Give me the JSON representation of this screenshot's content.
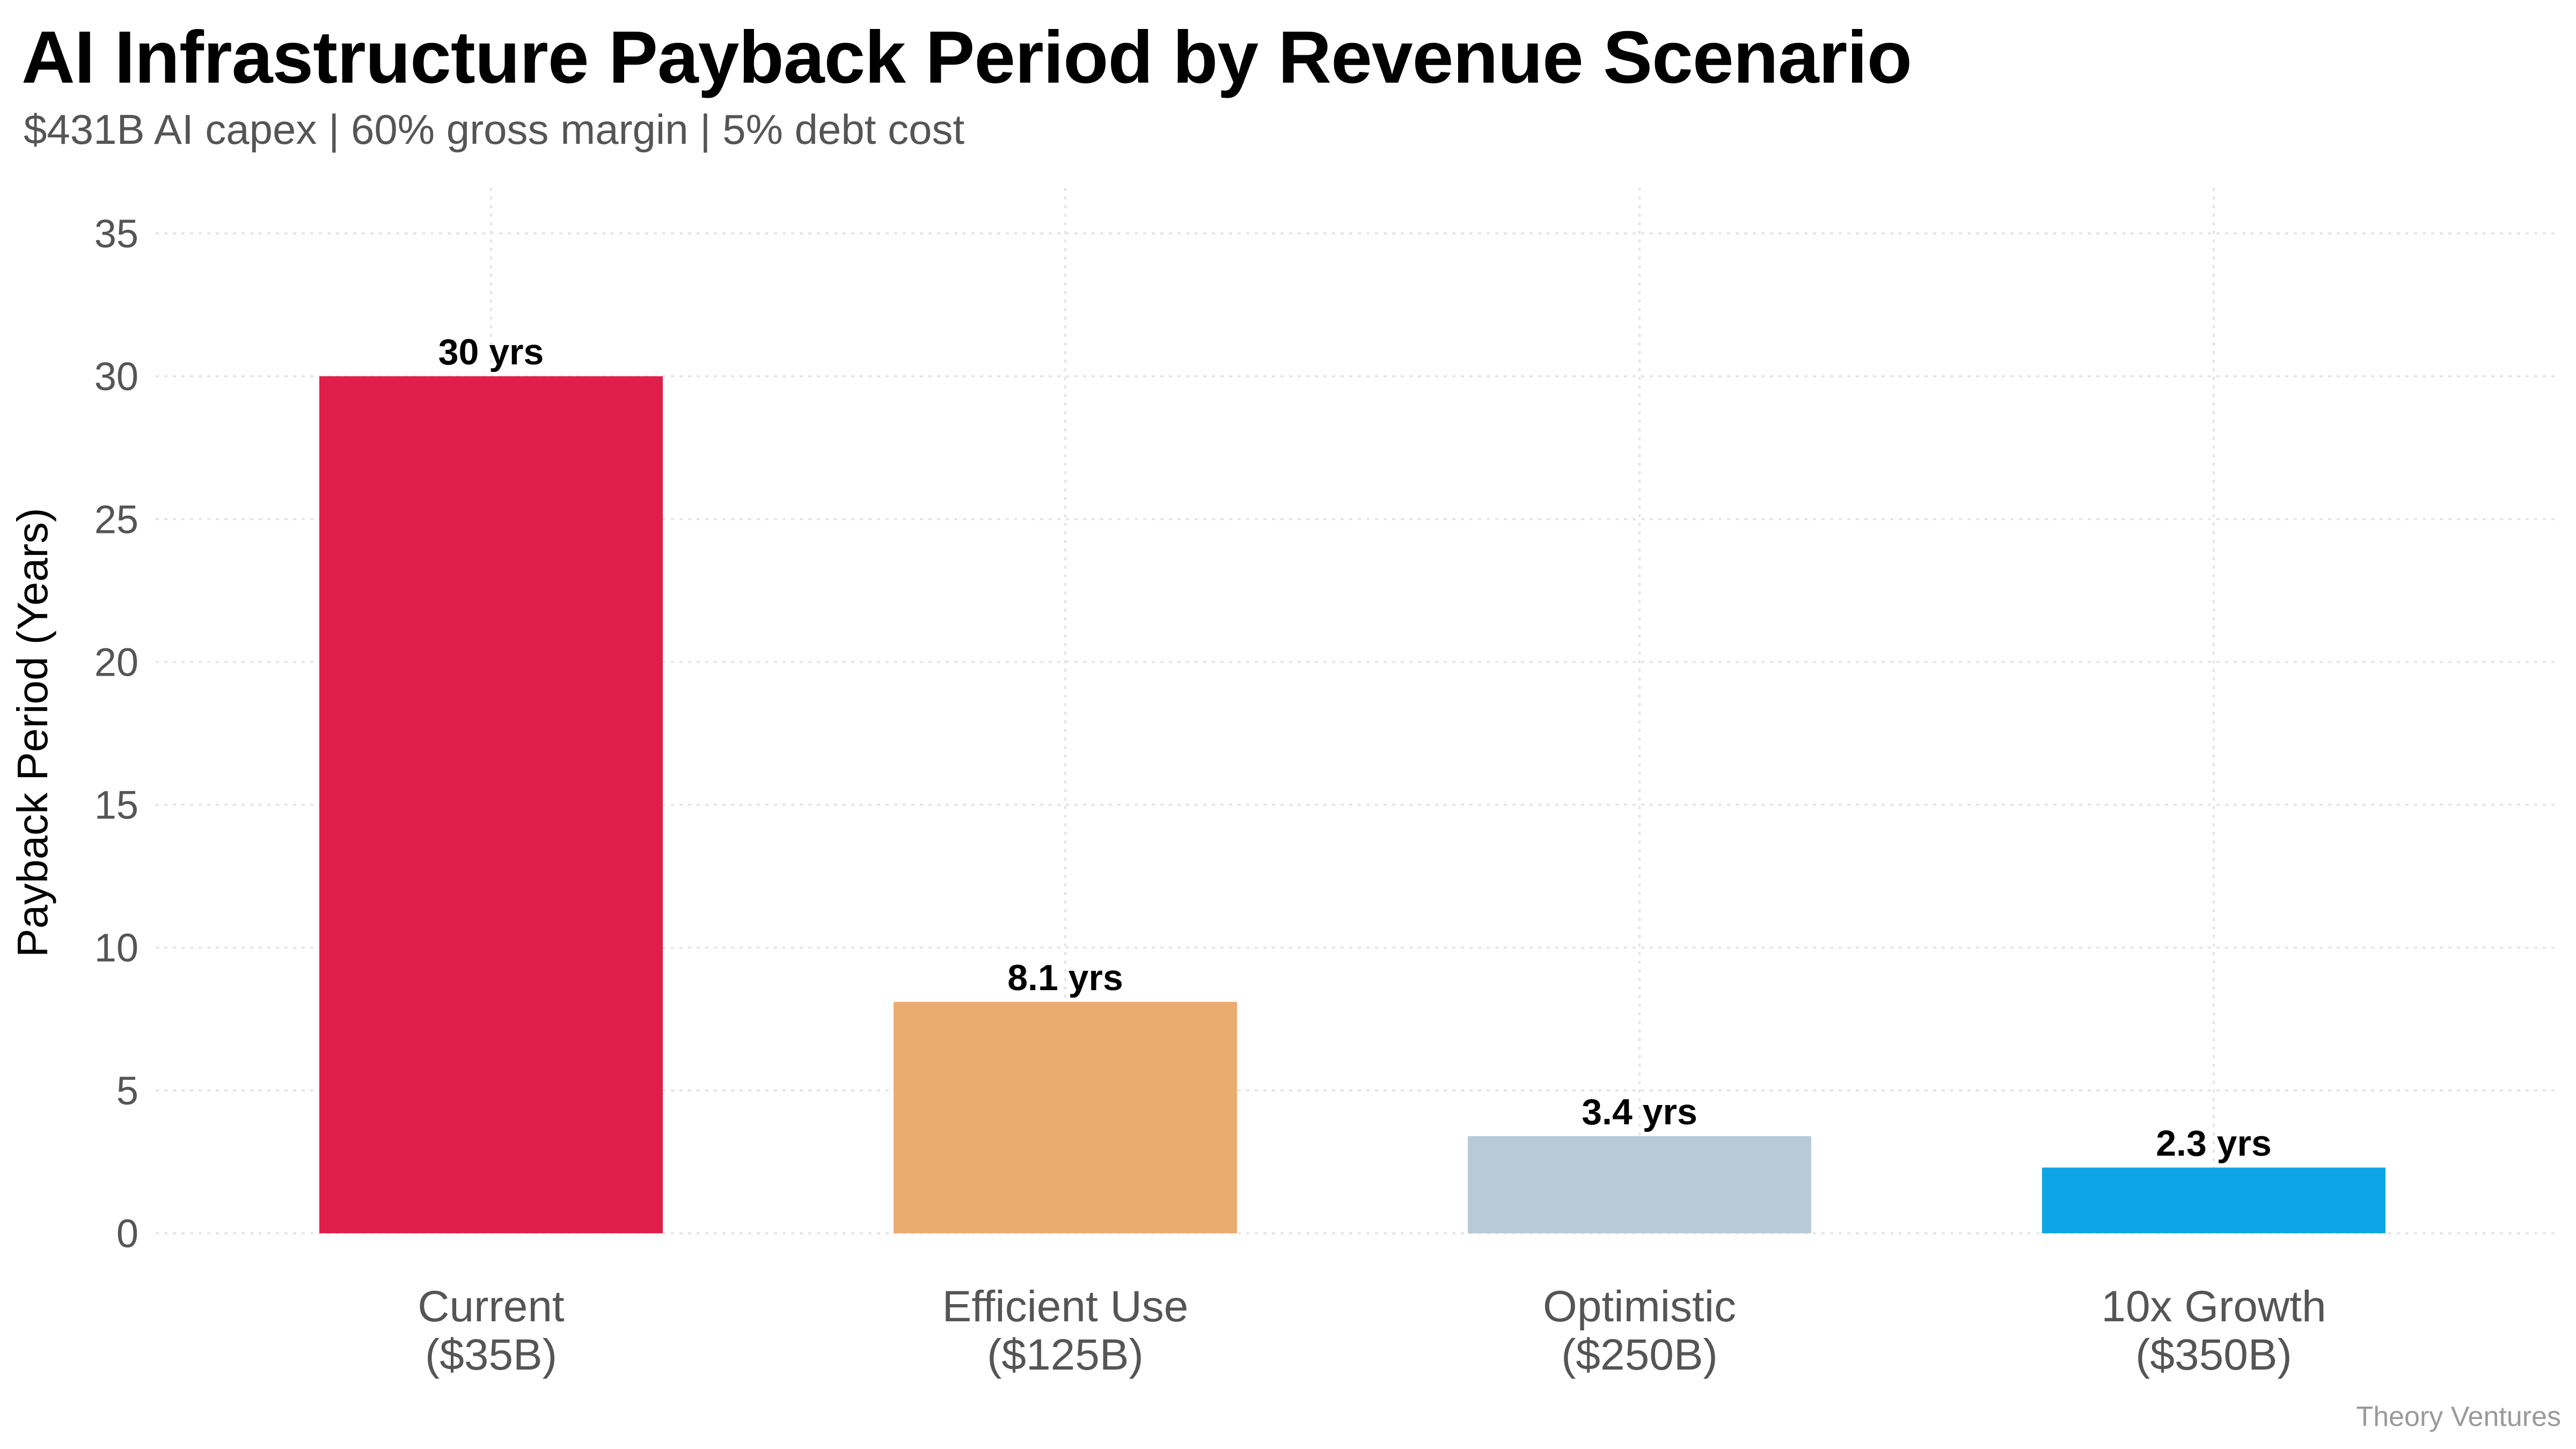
{
  "header": {
    "title": "AI Infrastructure Payback Period by Revenue Scenario",
    "subtitle": "$431B AI capex | 60% gross margin | 5% debt cost"
  },
  "footer": {
    "source": "Theory Ventures"
  },
  "chart_data": {
    "type": "bar",
    "title": "AI Infrastructure Payback Period by Revenue Scenario",
    "subtitle": "$431B AI capex | 60% gross margin | 5% debt cost",
    "xlabel": "",
    "ylabel": "Payback Period (Years)",
    "ylim": [
      0,
      36
    ],
    "yticks": [
      0,
      5,
      10,
      15,
      20,
      25,
      30,
      35
    ],
    "grid": true,
    "categories": [
      [
        "Current",
        "($35B)"
      ],
      [
        "Efficient Use",
        "($125B)"
      ],
      [
        "Optimistic",
        "($250B)"
      ],
      [
        "10x Growth",
        "($350B)"
      ]
    ],
    "values": [
      30,
      8.1,
      3.4,
      2.3
    ],
    "value_labels": [
      "30 yrs",
      "8.1 yrs",
      "3.4 yrs",
      "2.3 yrs"
    ],
    "colors": [
      "#e01e4a",
      "#ebac70",
      "#b8c9d8",
      "#0ea5e6"
    ]
  }
}
